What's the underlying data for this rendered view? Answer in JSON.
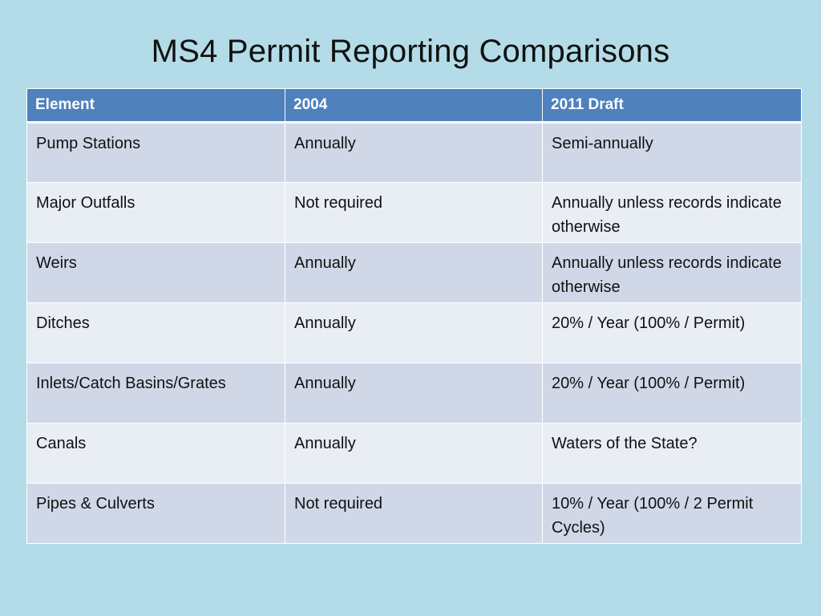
{
  "slide": {
    "title": "MS4 Permit Reporting Comparisons"
  },
  "table": {
    "headers": [
      "Element",
      "2004",
      "2011 Draft"
    ],
    "rows": [
      [
        "Pump Stations",
        "Annually",
        "Semi-annually"
      ],
      [
        "Major Outfalls",
        "Not required",
        "Annually unless records indicate otherwise"
      ],
      [
        "Weirs",
        "Annually",
        "Annually unless records indicate otherwise"
      ],
      [
        "Ditches",
        "Annually",
        "20% / Year (100% / Permit)"
      ],
      [
        "Inlets/Catch Basins/Grates",
        "Annually",
        "20% / Year (100% / Permit)"
      ],
      [
        "Canals",
        "Annually",
        "Waters of the State?"
      ],
      [
        "Pipes & Culverts",
        "Not required",
        "10% / Year (100% / 2 Permit Cycles)"
      ]
    ]
  },
  "colors": {
    "background": "#b4dce8",
    "header": "#4f81bd",
    "row_odd": "#d0d8e8",
    "row_even": "#e9edf4"
  }
}
